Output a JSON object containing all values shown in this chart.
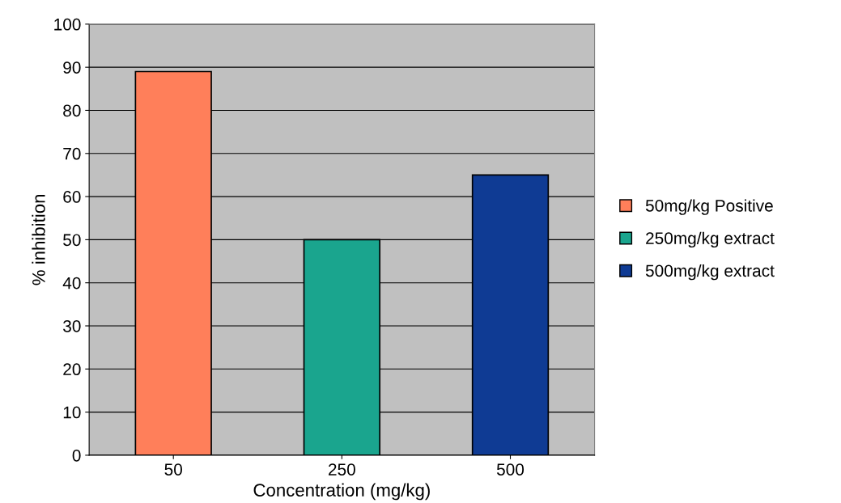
{
  "chart_data": {
    "type": "bar",
    "xlabel": "Concentration (mg/kg)",
    "ylabel": "% inhibition",
    "categories": [
      "50",
      "250",
      "500"
    ],
    "series": [
      {
        "name": "50mg/kg Positive",
        "color": "#ff7f5a",
        "values": [
          89,
          null,
          null
        ]
      },
      {
        "name": "250mg/kg extract",
        "color": "#1aa58e",
        "values": [
          null,
          50,
          null
        ]
      },
      {
        "name": "500mg/kg extract",
        "color": "#0f3b94",
        "values": [
          null,
          null,
          65
        ]
      }
    ],
    "ylim": [
      0,
      100
    ],
    "yticks": [
      0,
      10,
      20,
      30,
      40,
      50,
      60,
      70,
      80,
      90,
      100
    ],
    "grid": "y",
    "legend": "right"
  }
}
